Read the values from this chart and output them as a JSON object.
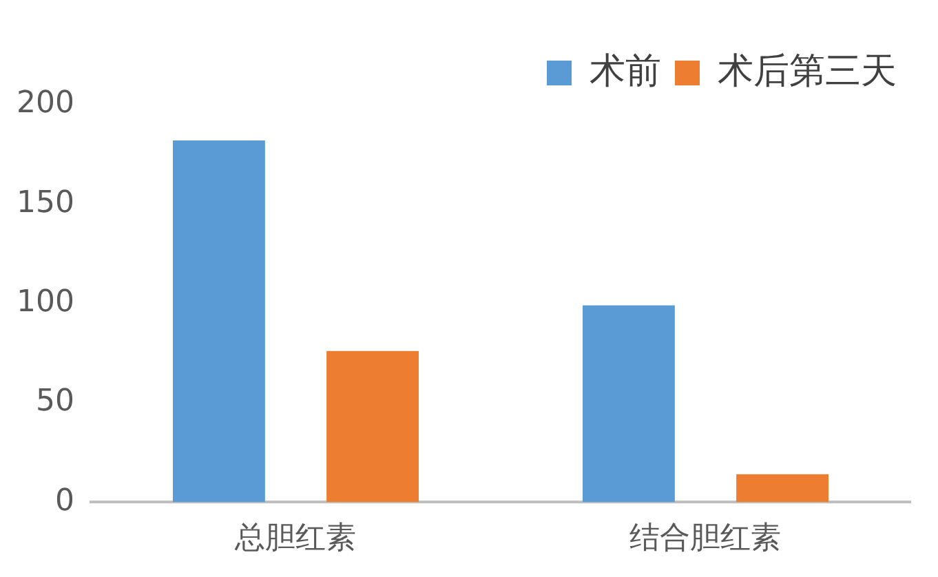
{
  "chart_data": {
    "type": "bar",
    "categories": [
      "总胆红素",
      "结合胆红素"
    ],
    "series": [
      {
        "name": "术前",
        "color": "#5b9bd5",
        "values": [
          182,
          99
        ]
      },
      {
        "name": "术后第三天",
        "color": "#ed7d31",
        "values": [
          76,
          14
        ]
      }
    ],
    "ylim": [
      0,
      200
    ],
    "yticks": [
      0,
      50,
      100,
      150,
      200
    ],
    "grid": false,
    "legend": "top right"
  }
}
